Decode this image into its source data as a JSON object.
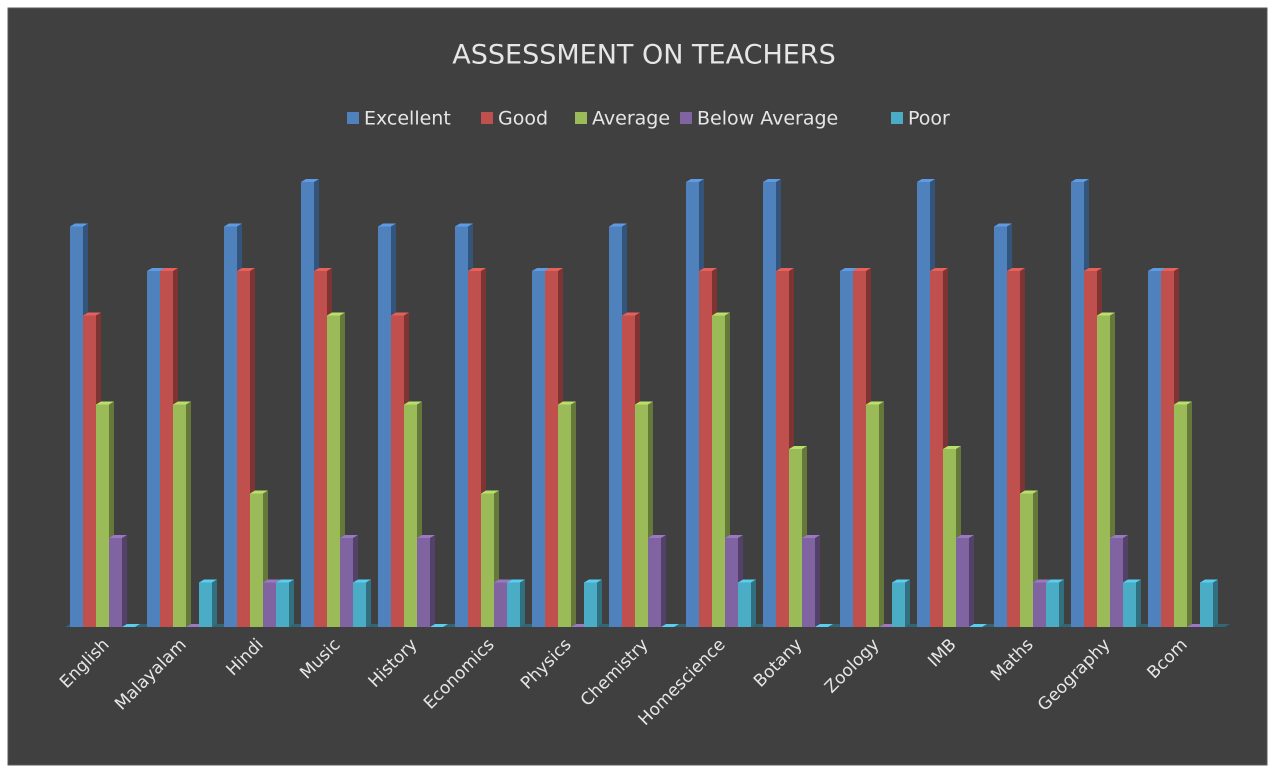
{
  "chart_data": {
    "type": "bar3d",
    "title": "ASSESSMENT ON TEACHERS",
    "categories": [
      "English",
      "Malayalam",
      "Hindi",
      "Music",
      "History",
      "Economics",
      "Physics",
      "Chemistry",
      "Homescience",
      "Botany",
      "Zoology",
      "IMB",
      "Maths",
      "Geography",
      "Bcom"
    ],
    "series": [
      {
        "name": "Excellent",
        "color": "#4f81bd",
        "values": [
          9,
          8,
          9,
          10,
          9,
          9,
          8,
          9,
          10,
          10,
          8,
          10,
          9,
          10,
          8
        ]
      },
      {
        "name": "Good",
        "color": "#c0504d",
        "values": [
          7,
          8,
          8,
          8,
          7,
          8,
          8,
          7,
          8,
          8,
          8,
          8,
          8,
          8,
          8
        ]
      },
      {
        "name": "Average",
        "color": "#9bbb59",
        "values": [
          5,
          5,
          3,
          7,
          5,
          3,
          5,
          5,
          7,
          4,
          5,
          4,
          3,
          7,
          5
        ]
      },
      {
        "name": "Below Average",
        "color": "#8064a2",
        "values": [
          2,
          0,
          1,
          2,
          2,
          1,
          0,
          2,
          2,
          2,
          0,
          2,
          1,
          2,
          0
        ]
      },
      {
        "name": "Poor",
        "color": "#4bacc6",
        "values": [
          0,
          1,
          1,
          1,
          0,
          1,
          1,
          0,
          1,
          0,
          1,
          0,
          1,
          1,
          1
        ]
      }
    ]
  }
}
